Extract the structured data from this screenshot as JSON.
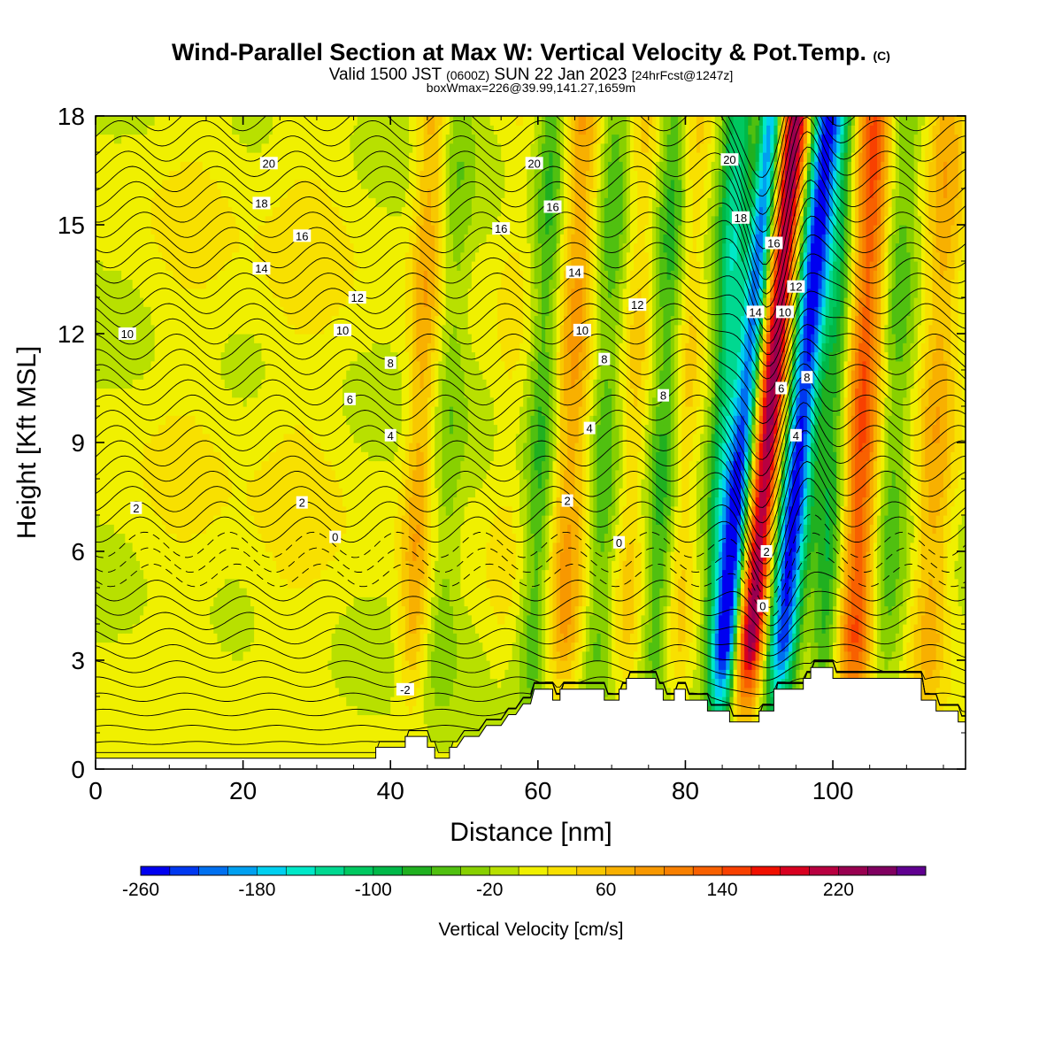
{
  "header": {
    "title": "Wind-Parallel Section at Max W: Vertical Velocity & Pot.Temp.",
    "title_mark": "(C)",
    "valid_a": "Valid 1500 JST",
    "valid_b": "(0600Z)",
    "valid_c": "SUN 22 Jan 2023",
    "valid_d": "[24hrFcst@1247z]",
    "subtitle": "boxWmax=226@39.99,141.27,1659m"
  },
  "chart_data": {
    "type": "heatmap",
    "xlabel": "Distance [nm]",
    "ylabel": "Height [Kft MSL]",
    "xlim": [
      0,
      118
    ],
    "ylim": [
      0,
      18
    ],
    "x_ticks": [
      "0",
      "20",
      "40",
      "60",
      "80",
      "100"
    ],
    "y_ticks": [
      "0",
      "3",
      "6",
      "9",
      "12",
      "15",
      "18"
    ],
    "colorbar": {
      "label": "Vertical Velocity [cm/s]",
      "tick_labels": [
        "-260",
        "-180",
        "-100",
        "-20",
        "60",
        "140",
        "220"
      ],
      "levels": [
        -260,
        -240,
        -220,
        -200,
        -180,
        -160,
        -140,
        -120,
        -100,
        -80,
        -60,
        -40,
        -20,
        0,
        20,
        40,
        60,
        80,
        100,
        120,
        140,
        160,
        180,
        200,
        220,
        240,
        260
      ],
      "colors": [
        "#0000f0",
        "#0038f0",
        "#0070f0",
        "#00a0f0",
        "#00d0f0",
        "#00e8c8",
        "#00d890",
        "#00c860",
        "#00b848",
        "#20b020",
        "#50c010",
        "#88d000",
        "#b8e000",
        "#f0f000",
        "#f8e000",
        "#f8c800",
        "#f8b000",
        "#f89800",
        "#f88000",
        "#f86000",
        "#f84000",
        "#f01000",
        "#d80020",
        "#b80040",
        "#980050",
        "#800060",
        "#600090"
      ]
    },
    "velocity_bands": [
      {
        "x": 12,
        "w": 6,
        "peak": 20
      },
      {
        "x": 28,
        "w": 6,
        "peak": 25
      },
      {
        "x": 44,
        "w": 2,
        "peak": 70
      },
      {
        "x": 48,
        "w": 2,
        "peak": -30
      },
      {
        "x": 56,
        "w": 2.5,
        "peak": 20
      },
      {
        "x": 60.5,
        "w": 2,
        "peak": -60
      },
      {
        "x": 64.5,
        "w": 2.5,
        "peak": 80
      },
      {
        "x": 69,
        "w": 2,
        "peak": -50
      },
      {
        "x": 73,
        "w": 2,
        "peak": 40
      },
      {
        "x": 77,
        "w": 2,
        "peak": -60
      },
      {
        "x": 80,
        "w": 1.8,
        "peak": 40
      },
      {
        "x": 85.5,
        "w": 2,
        "peak": -130
      },
      {
        "x": 87.8,
        "w": 1.5,
        "peak": -200
      },
      {
        "x": 91.2,
        "w": 1.8,
        "peak": 226
      },
      {
        "x": 95.5,
        "w": 2,
        "peak": -250
      },
      {
        "x": 100,
        "w": 2,
        "peak": -80
      },
      {
        "x": 104,
        "w": 2.5,
        "peak": 140
      },
      {
        "x": 108,
        "w": 2.5,
        "peak": -50
      },
      {
        "x": 114,
        "w": 2.5,
        "peak": 70
      }
    ],
    "terrain": {
      "x": [
        0,
        38,
        38,
        42,
        42,
        45,
        45,
        46,
        46,
        48,
        48,
        49,
        50,
        52,
        53,
        55,
        56,
        57,
        58,
        59,
        59.5,
        62,
        62,
        63,
        63,
        65,
        65,
        69,
        69,
        71,
        71,
        72,
        72,
        73,
        73,
        76,
        76,
        77,
        77,
        78.5,
        78.5,
        80,
        80,
        83,
        83,
        86,
        86,
        90,
        90,
        92,
        92,
        96,
        96,
        97,
        97,
        98,
        98,
        100,
        100,
        103,
        103,
        112,
        112,
        114,
        114,
        117,
        117,
        118
      ],
      "y": [
        0.3,
        0.3,
        0.6,
        0.6,
        0.9,
        0.9,
        0.6,
        0.6,
        0.3,
        0.3,
        0.6,
        0.6,
        0.9,
        0.9,
        1.2,
        1.2,
        1.5,
        1.5,
        1.8,
        1.8,
        2.2,
        2.2,
        1.9,
        1.9,
        2.2,
        2.2,
        2.2,
        2.2,
        1.9,
        1.9,
        2.2,
        2.2,
        2.5,
        2.5,
        2.5,
        2.5,
        2.2,
        2.2,
        1.9,
        1.9,
        2.2,
        2.2,
        1.9,
        1.9,
        1.6,
        1.6,
        1.3,
        1.3,
        1.6,
        1.6,
        2.2,
        2.2,
        2.5,
        2.5,
        2.8,
        2.8,
        2.8,
        2.8,
        2.5,
        2.5,
        2.5,
        2.5,
        1.9,
        1.9,
        1.6,
        1.6,
        1.3,
        1.3
      ]
    },
    "isotherm_labels": [
      {
        "text": "20",
        "x": 23.5,
        "y": 16.7
      },
      {
        "text": "18",
        "x": 22.5,
        "y": 15.6
      },
      {
        "text": "16",
        "x": 28,
        "y": 14.7
      },
      {
        "text": "14",
        "x": 22.5,
        "y": 13.8
      },
      {
        "text": "12",
        "x": 35.5,
        "y": 13.0
      },
      {
        "text": "10",
        "x": 4.3,
        "y": 12.0
      },
      {
        "text": "10",
        "x": 33.5,
        "y": 12.1
      },
      {
        "text": "8",
        "x": 40,
        "y": 11.2
      },
      {
        "text": "6",
        "x": 34.5,
        "y": 10.2
      },
      {
        "text": "4",
        "x": 40,
        "y": 9.2
      },
      {
        "text": "2",
        "x": 5.5,
        "y": 7.2
      },
      {
        "text": "2",
        "x": 28,
        "y": 7.35
      },
      {
        "text": "0",
        "x": 32.5,
        "y": 6.4
      },
      {
        "text": "20",
        "x": 59.5,
        "y": 16.7
      },
      {
        "text": "16",
        "x": 55,
        "y": 14.9
      },
      {
        "text": "16",
        "x": 62,
        "y": 15.5
      },
      {
        "text": "14",
        "x": 65,
        "y": 13.7
      },
      {
        "text": "12",
        "x": 73.5,
        "y": 12.8
      },
      {
        "text": "10",
        "x": 66,
        "y": 12.1
      },
      {
        "text": "8",
        "x": 69,
        "y": 11.3
      },
      {
        "text": "8",
        "x": 77,
        "y": 10.3
      },
      {
        "text": "4",
        "x": 67,
        "y": 9.4
      },
      {
        "text": "2",
        "x": 64,
        "y": 7.4
      },
      {
        "text": "0",
        "x": 71,
        "y": 6.25
      },
      {
        "text": "-2",
        "x": 42,
        "y": 2.2
      },
      {
        "text": "20",
        "x": 86,
        "y": 16.8
      },
      {
        "text": "18",
        "x": 87.5,
        "y": 15.2
      },
      {
        "text": "16",
        "x": 92,
        "y": 14.5
      },
      {
        "text": "14",
        "x": 89.5,
        "y": 12.6
      },
      {
        "text": "12",
        "x": 95,
        "y": 13.3
      },
      {
        "text": "10",
        "x": 93.5,
        "y": 12.6
      },
      {
        "text": "8",
        "x": 96.5,
        "y": 10.8
      },
      {
        "text": "6",
        "x": 93,
        "y": 10.5
      },
      {
        "text": "4",
        "x": 95,
        "y": 9.2
      },
      {
        "text": "2",
        "x": 91,
        "y": 6.0
      },
      {
        "text": "0",
        "x": 90.5,
        "y": 4.5
      }
    ]
  }
}
